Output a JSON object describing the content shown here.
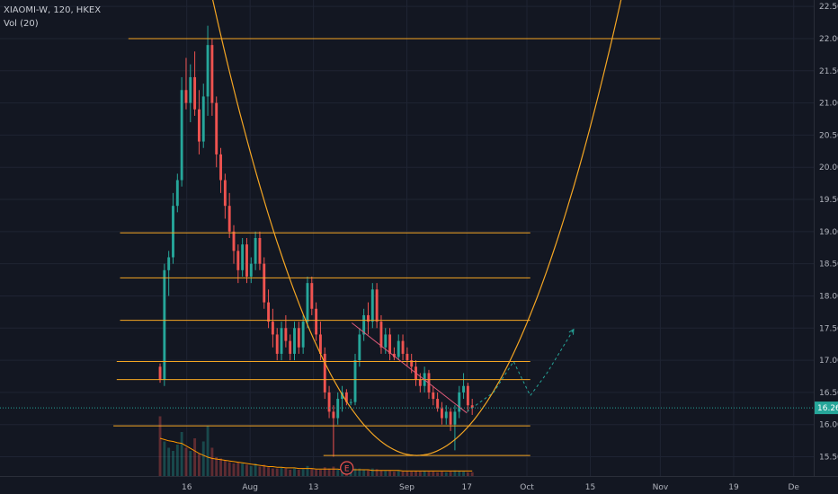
{
  "legend": {
    "symbol_line": "XIAOMI-W, 120, HKEX",
    "volume_line": "Vol (20)"
  },
  "colors": {
    "background": "#131722",
    "grid": "#1f2433",
    "up": "#26a69a",
    "down": "#ef5350",
    "drawing": "#f5a623",
    "price_line": "#26a69a",
    "volume_ma": "#ff9800"
  },
  "chart_data": {
    "type": "candlestick",
    "symbol": "XIAOMI-W",
    "interval": "120",
    "exchange": "HKEX",
    "y_ticks": [
      "15.50",
      "16.00",
      "16.50",
      "17.00",
      "17.50",
      "18.00",
      "18.50",
      "19.00",
      "19.50",
      "20.00",
      "20.50",
      "21.00",
      "21.50",
      "22.00",
      "22.50"
    ],
    "ylim": [
      15.2,
      22.6
    ],
    "x_ticks": [
      {
        "label": "16",
        "index": 8
      },
      {
        "label": "Aug",
        "index": 27
      },
      {
        "label": "13",
        "index": 46
      },
      {
        "label": "Sep",
        "index": 74
      },
      {
        "label": "17",
        "index": 92
      },
      {
        "label": "Oct",
        "index": 110
      },
      {
        "label": "15",
        "index": 129
      },
      {
        "label": "Nov",
        "index": 150
      },
      {
        "label": "19",
        "index": 172
      },
      {
        "label": "De",
        "index": 190
      }
    ],
    "xlim": [
      -48,
      196
    ],
    "last_price": "16.26",
    "last_price_value": 16.26,
    "candles": [
      [
        16.9,
        16.95,
        16.65,
        16.7
      ],
      [
        16.7,
        18.5,
        16.6,
        18.4
      ],
      [
        18.4,
        18.7,
        18.0,
        18.6
      ],
      [
        18.6,
        19.6,
        18.5,
        19.4
      ],
      [
        19.4,
        19.9,
        19.3,
        19.8
      ],
      [
        19.8,
        21.4,
        19.7,
        21.2
      ],
      [
        21.2,
        21.7,
        20.9,
        21.0
      ],
      [
        21.0,
        21.6,
        20.7,
        21.4
      ],
      [
        21.4,
        21.8,
        20.8,
        20.9
      ],
      [
        20.9,
        21.2,
        20.2,
        20.4
      ],
      [
        20.4,
        21.3,
        20.3,
        21.1
      ],
      [
        21.1,
        22.2,
        20.8,
        21.9
      ],
      [
        21.9,
        22.0,
        20.8,
        21.0
      ],
      [
        21.0,
        21.1,
        20.0,
        20.2
      ],
      [
        20.2,
        20.3,
        19.6,
        19.8
      ],
      [
        19.8,
        19.9,
        19.2,
        19.4
      ],
      [
        19.4,
        19.6,
        18.9,
        19.0
      ],
      [
        19.0,
        19.1,
        18.5,
        18.7
      ],
      [
        18.7,
        18.8,
        18.2,
        18.4
      ],
      [
        18.4,
        18.9,
        18.3,
        18.8
      ],
      [
        18.8,
        18.9,
        18.2,
        18.3
      ],
      [
        18.3,
        18.6,
        18.2,
        18.5
      ],
      [
        18.5,
        19.0,
        18.4,
        18.9
      ],
      [
        18.9,
        19.0,
        18.4,
        18.5
      ],
      [
        18.5,
        18.6,
        17.8,
        17.9
      ],
      [
        17.9,
        18.1,
        17.5,
        17.6
      ],
      [
        17.6,
        17.8,
        17.2,
        17.4
      ],
      [
        17.4,
        17.5,
        17.0,
        17.1
      ],
      [
        17.1,
        17.6,
        17.0,
        17.5
      ],
      [
        17.5,
        17.7,
        17.2,
        17.3
      ],
      [
        17.3,
        17.4,
        17.0,
        17.1
      ],
      [
        17.1,
        17.6,
        17.0,
        17.5
      ],
      [
        17.5,
        17.6,
        17.1,
        17.2
      ],
      [
        17.2,
        17.7,
        17.1,
        17.6
      ],
      [
        17.6,
        18.3,
        17.5,
        18.2
      ],
      [
        18.2,
        18.3,
        17.7,
        17.8
      ],
      [
        17.8,
        17.9,
        17.3,
        17.4
      ],
      [
        17.4,
        17.6,
        17.0,
        17.1
      ],
      [
        17.1,
        17.2,
        16.4,
        16.5
      ],
      [
        16.5,
        16.6,
        16.1,
        16.2
      ],
      [
        16.2,
        16.3,
        15.5,
        16.1
      ],
      [
        16.1,
        16.5,
        16.0,
        16.4
      ],
      [
        16.4,
        16.6,
        16.2,
        16.5
      ],
      [
        16.5,
        16.55,
        16.3,
        16.35
      ],
      [
        16.35,
        16.4,
        16.3,
        16.35
      ],
      [
        16.35,
        17.1,
        16.3,
        17.0
      ],
      [
        17.0,
        17.5,
        16.9,
        17.4
      ],
      [
        17.4,
        17.8,
        17.3,
        17.7
      ],
      [
        17.7,
        17.9,
        17.4,
        17.6
      ],
      [
        17.6,
        18.2,
        17.5,
        18.1
      ],
      [
        18.1,
        18.2,
        17.5,
        17.6
      ],
      [
        17.6,
        17.7,
        17.1,
        17.2
      ],
      [
        17.2,
        17.5,
        17.1,
        17.4
      ],
      [
        17.4,
        17.5,
        17.0,
        17.1
      ],
      [
        17.1,
        17.2,
        17.0,
        17.05
      ],
      [
        17.05,
        17.4,
        17.0,
        17.3
      ],
      [
        17.3,
        17.4,
        17.0,
        17.1
      ],
      [
        17.1,
        17.2,
        16.9,
        17.0
      ],
      [
        17.0,
        17.1,
        16.8,
        16.9
      ],
      [
        16.9,
        17.0,
        16.6,
        16.7
      ],
      [
        16.7,
        16.8,
        16.5,
        16.6
      ],
      [
        16.6,
        16.9,
        16.5,
        16.8
      ],
      [
        16.8,
        16.85,
        16.4,
        16.5
      ],
      [
        16.5,
        16.6,
        16.3,
        16.4
      ],
      [
        16.4,
        16.5,
        16.2,
        16.25
      ],
      [
        16.25,
        16.35,
        16.0,
        16.1
      ],
      [
        16.1,
        16.3,
        16.0,
        16.2
      ],
      [
        16.2,
        16.25,
        15.9,
        16.0
      ],
      [
        16.0,
        16.3,
        15.6,
        16.2
      ],
      [
        16.2,
        16.6,
        16.1,
        16.5
      ],
      [
        16.5,
        16.8,
        16.4,
        16.6
      ],
      [
        16.6,
        16.65,
        16.2,
        16.3
      ],
      [
        16.3,
        16.4,
        16.15,
        16.26
      ]
    ],
    "candle_start_index": 0,
    "candle_index_step": 1.3,
    "volume": [
      0.95,
      0.55,
      0.45,
      0.4,
      0.5,
      0.7,
      0.45,
      0.4,
      0.6,
      0.35,
      0.55,
      0.8,
      0.45,
      0.3,
      0.28,
      0.25,
      0.22,
      0.2,
      0.22,
      0.2,
      0.18,
      0.16,
      0.2,
      0.15,
      0.18,
      0.14,
      0.12,
      0.12,
      0.14,
      0.12,
      0.1,
      0.12,
      0.1,
      0.11,
      0.16,
      0.12,
      0.1,
      0.1,
      0.14,
      0.12,
      0.15,
      0.1,
      0.09,
      0.08,
      0.07,
      0.12,
      0.12,
      0.1,
      0.09,
      0.12,
      0.11,
      0.09,
      0.08,
      0.08,
      0.07,
      0.08,
      0.07,
      0.07,
      0.07,
      0.08,
      0.07,
      0.08,
      0.07,
      0.07,
      0.06,
      0.07,
      0.06,
      0.07,
      0.09,
      0.08,
      0.07,
      0.06,
      0.06
    ],
    "volume_ma": [
      0.6,
      0.58,
      0.56,
      0.55,
      0.53,
      0.52,
      0.48,
      0.44,
      0.4,
      0.36,
      0.33,
      0.3,
      0.28,
      0.27,
      0.26,
      0.25,
      0.24,
      0.23,
      0.22,
      0.21,
      0.2,
      0.19,
      0.18,
      0.17,
      0.16,
      0.15,
      0.15,
      0.14,
      0.14,
      0.13,
      0.13,
      0.13,
      0.12,
      0.12,
      0.12,
      0.12,
      0.11,
      0.11,
      0.11,
      0.11,
      0.11,
      0.11,
      0.1,
      0.1,
      0.1,
      0.1,
      0.1,
      0.1,
      0.1,
      0.09,
      0.09,
      0.09,
      0.09,
      0.09,
      0.09,
      0.09,
      0.08,
      0.08,
      0.08,
      0.08,
      0.08,
      0.08,
      0.08,
      0.08,
      0.08,
      0.08,
      0.08,
      0.08,
      0.08,
      0.08,
      0.08,
      0.08,
      0.08
    ],
    "drawings": {
      "horizontal_lines": [
        {
          "price": 22.0,
          "x1": -9.5,
          "x2": 150
        },
        {
          "price": 18.98,
          "x1": -12,
          "x2": 111
        },
        {
          "price": 18.28,
          "x1": -12,
          "x2": 111
        },
        {
          "price": 17.62,
          "x1": -12,
          "x2": 111
        },
        {
          "price": 16.98,
          "x1": -13,
          "x2": 111
        },
        {
          "price": 16.7,
          "x1": -13,
          "x2": 111
        },
        {
          "price": 15.98,
          "x1": -14,
          "x2": 111
        },
        {
          "price": 15.52,
          "x1": 49,
          "x2": 111
        }
      ],
      "parabola": {
        "vertex_x": 77,
        "vertex_price": 15.52,
        "curvature": 0.00189,
        "x_from": -15,
        "x_to": 173
      },
      "trend_line": {
        "points": [
          [
            57.5,
            17.58
          ],
          [
            92,
            16.18
          ]
        ]
      },
      "projection_path": {
        "points": [
          [
            92,
            16.2
          ],
          [
            100,
            16.5
          ],
          [
            106,
            16.98
          ],
          [
            111,
            16.45
          ],
          [
            116,
            16.8
          ],
          [
            124,
            17.48
          ]
        ]
      }
    },
    "event_marker": {
      "label": "E",
      "index": 56
    }
  }
}
